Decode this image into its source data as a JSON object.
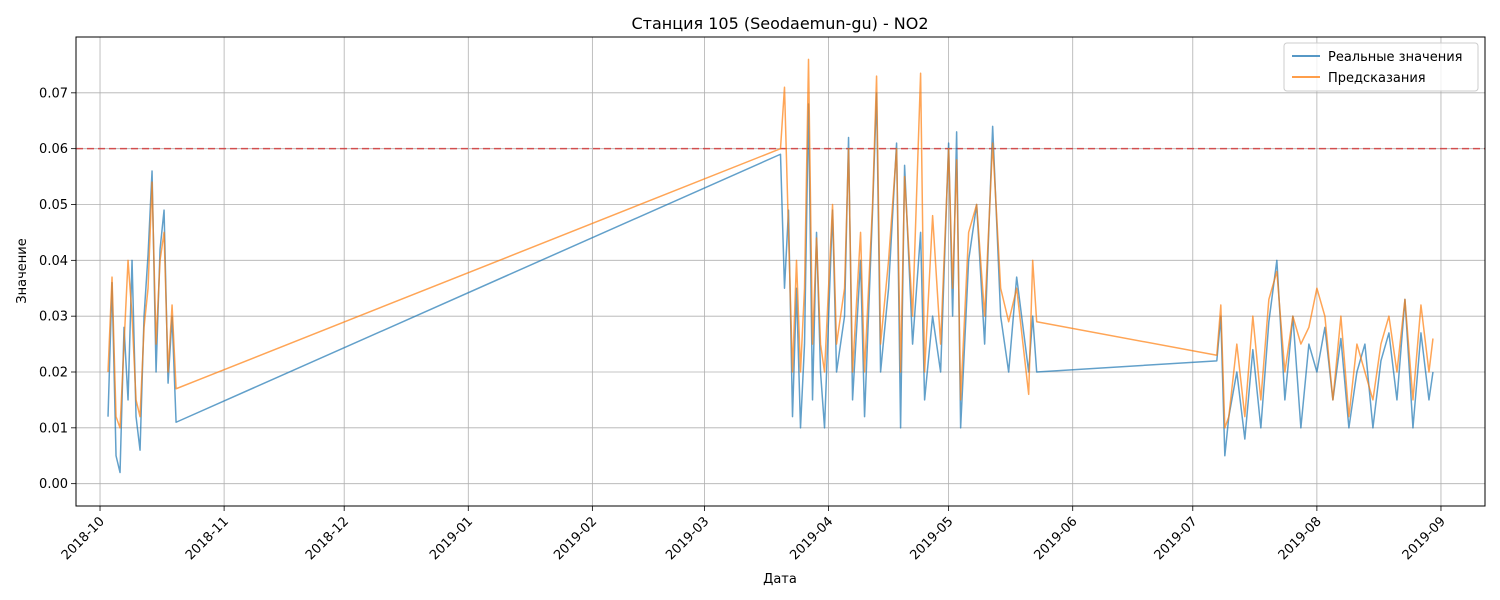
{
  "chart_data": {
    "type": "line",
    "title": "Станция 105 (Seodaemun-gu) - NO2",
    "xlabel": "Дата",
    "ylabel": "Значение",
    "x_type": "date",
    "xlim": [
      "2018-09-25",
      "2019-09-12"
    ],
    "ylim": [
      -0.004,
      0.08
    ],
    "yticks": [
      0.0,
      0.01,
      0.02,
      0.03,
      0.04,
      0.05,
      0.06,
      0.07
    ],
    "xticks": [
      "2018-10-01",
      "2018-11-01",
      "2018-12-01",
      "2019-01-01",
      "2019-02-01",
      "2019-03-01",
      "2019-04-01",
      "2019-05-01",
      "2019-06-01",
      "2019-07-01",
      "2019-08-01",
      "2019-09-01"
    ],
    "xtick_labels": [
      "2018-10",
      "2018-11",
      "2018-12",
      "2019-01",
      "2019-02",
      "2019-03",
      "2019-04",
      "2019-05",
      "2019-06",
      "2019-07",
      "2019-08",
      "2019-09"
    ],
    "grid": true,
    "legend_position": "top-right",
    "threshold": {
      "value": 0.06,
      "color": "#d62728",
      "style": "dashed"
    },
    "series": [
      {
        "name": "Реальные значения",
        "color": "#1f77b4",
        "points": [
          [
            "2018-10-03",
            0.012
          ],
          [
            "2018-10-04",
            0.036
          ],
          [
            "2018-10-05",
            0.005
          ],
          [
            "2018-10-06",
            0.002
          ],
          [
            "2018-10-07",
            0.028
          ],
          [
            "2018-10-08",
            0.015
          ],
          [
            "2018-10-09",
            0.04
          ],
          [
            "2018-10-10",
            0.012
          ],
          [
            "2018-10-11",
            0.006
          ],
          [
            "2018-10-12",
            0.03
          ],
          [
            "2018-10-13",
            0.041
          ],
          [
            "2018-10-14",
            0.056
          ],
          [
            "2018-10-15",
            0.02
          ],
          [
            "2018-10-16",
            0.042
          ],
          [
            "2018-10-17",
            0.049
          ],
          [
            "2018-10-18",
            0.018
          ],
          [
            "2018-10-19",
            0.03
          ],
          [
            "2018-10-20",
            0.011
          ],
          [
            "2019-03-20",
            0.059
          ],
          [
            "2019-03-21",
            0.035
          ],
          [
            "2019-03-22",
            0.049
          ],
          [
            "2019-03-23",
            0.012
          ],
          [
            "2019-03-24",
            0.035
          ],
          [
            "2019-03-25",
            0.01
          ],
          [
            "2019-03-26",
            0.025
          ],
          [
            "2019-03-27",
            0.068
          ],
          [
            "2019-03-28",
            0.015
          ],
          [
            "2019-03-29",
            0.045
          ],
          [
            "2019-03-30",
            0.02
          ],
          [
            "2019-03-31",
            0.01
          ],
          [
            "2019-04-02",
            0.049
          ],
          [
            "2019-04-03",
            0.02
          ],
          [
            "2019-04-05",
            0.03
          ],
          [
            "2019-04-06",
            0.062
          ],
          [
            "2019-04-07",
            0.015
          ],
          [
            "2019-04-09",
            0.04
          ],
          [
            "2019-04-10",
            0.012
          ],
          [
            "2019-04-12",
            0.049
          ],
          [
            "2019-04-13",
            0.07
          ],
          [
            "2019-04-14",
            0.02
          ],
          [
            "2019-04-16",
            0.035
          ],
          [
            "2019-04-18",
            0.061
          ],
          [
            "2019-04-19",
            0.01
          ],
          [
            "2019-04-20",
            0.057
          ],
          [
            "2019-04-22",
            0.025
          ],
          [
            "2019-04-24",
            0.045
          ],
          [
            "2019-04-25",
            0.015
          ],
          [
            "2019-04-27",
            0.03
          ],
          [
            "2019-04-29",
            0.02
          ],
          [
            "2019-05-01",
            0.061
          ],
          [
            "2019-05-02",
            0.03
          ],
          [
            "2019-05-03",
            0.063
          ],
          [
            "2019-05-04",
            0.01
          ],
          [
            "2019-05-06",
            0.04
          ],
          [
            "2019-05-08",
            0.05
          ],
          [
            "2019-05-10",
            0.025
          ],
          [
            "2019-05-12",
            0.064
          ],
          [
            "2019-05-14",
            0.03
          ],
          [
            "2019-05-16",
            0.02
          ],
          [
            "2019-05-18",
            0.037
          ],
          [
            "2019-05-21",
            0.02
          ],
          [
            "2019-05-22",
            0.03
          ],
          [
            "2019-05-23",
            0.02
          ],
          [
            "2019-07-07",
            0.022
          ],
          [
            "2019-07-08",
            0.03
          ],
          [
            "2019-07-09",
            0.005
          ],
          [
            "2019-07-10",
            0.012
          ],
          [
            "2019-07-12",
            0.02
          ],
          [
            "2019-07-14",
            0.008
          ],
          [
            "2019-07-16",
            0.024
          ],
          [
            "2019-07-18",
            0.01
          ],
          [
            "2019-07-20",
            0.029
          ],
          [
            "2019-07-22",
            0.04
          ],
          [
            "2019-07-24",
            0.015
          ],
          [
            "2019-07-26",
            0.03
          ],
          [
            "2019-07-28",
            0.01
          ],
          [
            "2019-07-30",
            0.025
          ],
          [
            "2019-08-01",
            0.02
          ],
          [
            "2019-08-03",
            0.028
          ],
          [
            "2019-08-05",
            0.015
          ],
          [
            "2019-08-07",
            0.026
          ],
          [
            "2019-08-09",
            0.01
          ],
          [
            "2019-08-11",
            0.02
          ],
          [
            "2019-08-13",
            0.025
          ],
          [
            "2019-08-15",
            0.01
          ],
          [
            "2019-08-17",
            0.022
          ],
          [
            "2019-08-19",
            0.027
          ],
          [
            "2019-08-21",
            0.015
          ],
          [
            "2019-08-23",
            0.033
          ],
          [
            "2019-08-25",
            0.01
          ],
          [
            "2019-08-27",
            0.027
          ],
          [
            "2019-08-29",
            0.015
          ],
          [
            "2019-08-30",
            0.02
          ]
        ]
      },
      {
        "name": "Предсказания",
        "color": "#ff7f0e",
        "points": [
          [
            "2018-10-03",
            0.02
          ],
          [
            "2018-10-04",
            0.037
          ],
          [
            "2018-10-05",
            0.012
          ],
          [
            "2018-10-06",
            0.01
          ],
          [
            "2018-10-07",
            0.025
          ],
          [
            "2018-10-08",
            0.04
          ],
          [
            "2018-10-09",
            0.03
          ],
          [
            "2018-10-10",
            0.015
          ],
          [
            "2018-10-11",
            0.012
          ],
          [
            "2018-10-12",
            0.028
          ],
          [
            "2018-10-13",
            0.035
          ],
          [
            "2018-10-14",
            0.054
          ],
          [
            "2018-10-15",
            0.025
          ],
          [
            "2018-10-16",
            0.04
          ],
          [
            "2018-10-17",
            0.045
          ],
          [
            "2018-10-18",
            0.02
          ],
          [
            "2018-10-19",
            0.032
          ],
          [
            "2018-10-20",
            0.017
          ],
          [
            "2019-03-20",
            0.06
          ],
          [
            "2019-03-21",
            0.071
          ],
          [
            "2019-03-22",
            0.045
          ],
          [
            "2019-03-23",
            0.02
          ],
          [
            "2019-03-24",
            0.04
          ],
          [
            "2019-03-25",
            0.02
          ],
          [
            "2019-03-26",
            0.035
          ],
          [
            "2019-03-27",
            0.076
          ],
          [
            "2019-03-28",
            0.025
          ],
          [
            "2019-03-29",
            0.044
          ],
          [
            "2019-03-30",
            0.025
          ],
          [
            "2019-03-31",
            0.02
          ],
          [
            "2019-04-02",
            0.05
          ],
          [
            "2019-04-03",
            0.025
          ],
          [
            "2019-04-05",
            0.035
          ],
          [
            "2019-04-06",
            0.06
          ],
          [
            "2019-04-07",
            0.02
          ],
          [
            "2019-04-09",
            0.045
          ],
          [
            "2019-04-10",
            0.02
          ],
          [
            "2019-04-12",
            0.05
          ],
          [
            "2019-04-13",
            0.073
          ],
          [
            "2019-04-14",
            0.025
          ],
          [
            "2019-04-16",
            0.04
          ],
          [
            "2019-04-18",
            0.06
          ],
          [
            "2019-04-19",
            0.02
          ],
          [
            "2019-04-20",
            0.055
          ],
          [
            "2019-04-22",
            0.03
          ],
          [
            "2019-04-24",
            0.0735
          ],
          [
            "2019-04-25",
            0.02
          ],
          [
            "2019-04-27",
            0.048
          ],
          [
            "2019-04-29",
            0.025
          ],
          [
            "2019-05-01",
            0.06
          ],
          [
            "2019-05-02",
            0.035
          ],
          [
            "2019-05-03",
            0.058
          ],
          [
            "2019-05-04",
            0.015
          ],
          [
            "2019-05-06",
            0.045
          ],
          [
            "2019-05-08",
            0.05
          ],
          [
            "2019-05-10",
            0.03
          ],
          [
            "2019-05-12",
            0.061
          ],
          [
            "2019-05-14",
            0.035
          ],
          [
            "2019-05-16",
            0.029
          ],
          [
            "2019-05-18",
            0.035
          ],
          [
            "2019-05-21",
            0.016
          ],
          [
            "2019-05-22",
            0.04
          ],
          [
            "2019-05-23",
            0.029
          ],
          [
            "2019-07-07",
            0.023
          ],
          [
            "2019-07-08",
            0.032
          ],
          [
            "2019-07-09",
            0.01
          ],
          [
            "2019-07-10",
            0.012
          ],
          [
            "2019-07-12",
            0.025
          ],
          [
            "2019-07-14",
            0.012
          ],
          [
            "2019-07-16",
            0.03
          ],
          [
            "2019-07-18",
            0.015
          ],
          [
            "2019-07-20",
            0.033
          ],
          [
            "2019-07-22",
            0.038
          ],
          [
            "2019-07-24",
            0.02
          ],
          [
            "2019-07-26",
            0.03
          ],
          [
            "2019-07-28",
            0.025
          ],
          [
            "2019-07-30",
            0.028
          ],
          [
            "2019-08-01",
            0.035
          ],
          [
            "2019-08-03",
            0.03
          ],
          [
            "2019-08-05",
            0.015
          ],
          [
            "2019-08-07",
            0.03
          ],
          [
            "2019-08-09",
            0.012
          ],
          [
            "2019-08-11",
            0.025
          ],
          [
            "2019-08-13",
            0.02
          ],
          [
            "2019-08-15",
            0.015
          ],
          [
            "2019-08-17",
            0.025
          ],
          [
            "2019-08-19",
            0.03
          ],
          [
            "2019-08-21",
            0.02
          ],
          [
            "2019-08-23",
            0.033
          ],
          [
            "2019-08-25",
            0.015
          ],
          [
            "2019-08-27",
            0.032
          ],
          [
            "2019-08-29",
            0.02
          ],
          [
            "2019-08-30",
            0.026
          ]
        ]
      }
    ]
  }
}
